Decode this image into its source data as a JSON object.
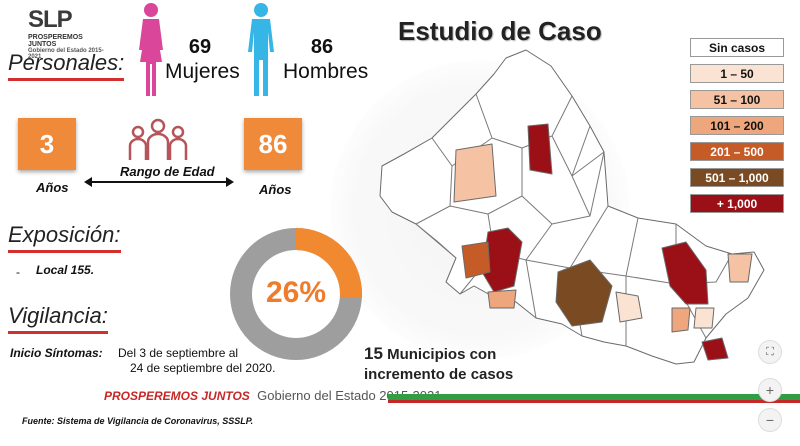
{
  "logo": {
    "mark": "SLP",
    "tagline": "PROSPEREMOS JUNTOS",
    "subtitle": "Gobierno del Estado 2015-2021"
  },
  "headline": "Estudio de Caso",
  "personales": {
    "title": "Personales:",
    "women_count": "69",
    "women_label": "Mujeres",
    "men_count": "86",
    "men_label": "Hombres"
  },
  "age": {
    "min": "3",
    "max": "86",
    "unit": "Años",
    "range_label": "Rango de Edad"
  },
  "exposicion": {
    "title": "Exposición:",
    "item": "Local 155."
  },
  "donut": {
    "label": "26%",
    "percent": 26,
    "fill_color": "#f0892f",
    "rest_color": "#9e9e9e"
  },
  "vigilancia": {
    "title": "Vigilancia:",
    "label": "Inicio Síntomas:",
    "line1": "Del 3 de septiembre al",
    "line2": "24 de septiembre del 2020."
  },
  "municipios": {
    "number": "15",
    "line1": "Municipios con",
    "line2": "incremento de casos"
  },
  "legend": [
    {
      "label": "Sin casos",
      "color": "#ffffff",
      "text_color": "#111111"
    },
    {
      "label": "1 – 50",
      "color": "#fbe3d4",
      "text_color": "#111111"
    },
    {
      "label": "51 – 100",
      "color": "#f5c3a4",
      "text_color": "#111111"
    },
    {
      "label": "101 – 200",
      "color": "#eea67d",
      "text_color": "#111111"
    },
    {
      "label": "201 – 500",
      "color": "#c55b27",
      "text_color": "#ffffff"
    },
    {
      "label": "501 – 1,000",
      "color": "#7a4a22",
      "text_color": "#ffffff"
    },
    {
      "label": "+ 1,000",
      "color": "#9b0f17",
      "text_color": "#ffffff"
    }
  ],
  "footer": {
    "brand": "PROSPEREMOS JUNTOS",
    "gov": "Gobierno del Estado 2015-2021",
    "source": "Fuente: Sistema de Vigilancia de Coronavirus, SSSLP."
  },
  "controls": {
    "expand": "⛶",
    "zoom_in": "+",
    "zoom_out": "−"
  }
}
